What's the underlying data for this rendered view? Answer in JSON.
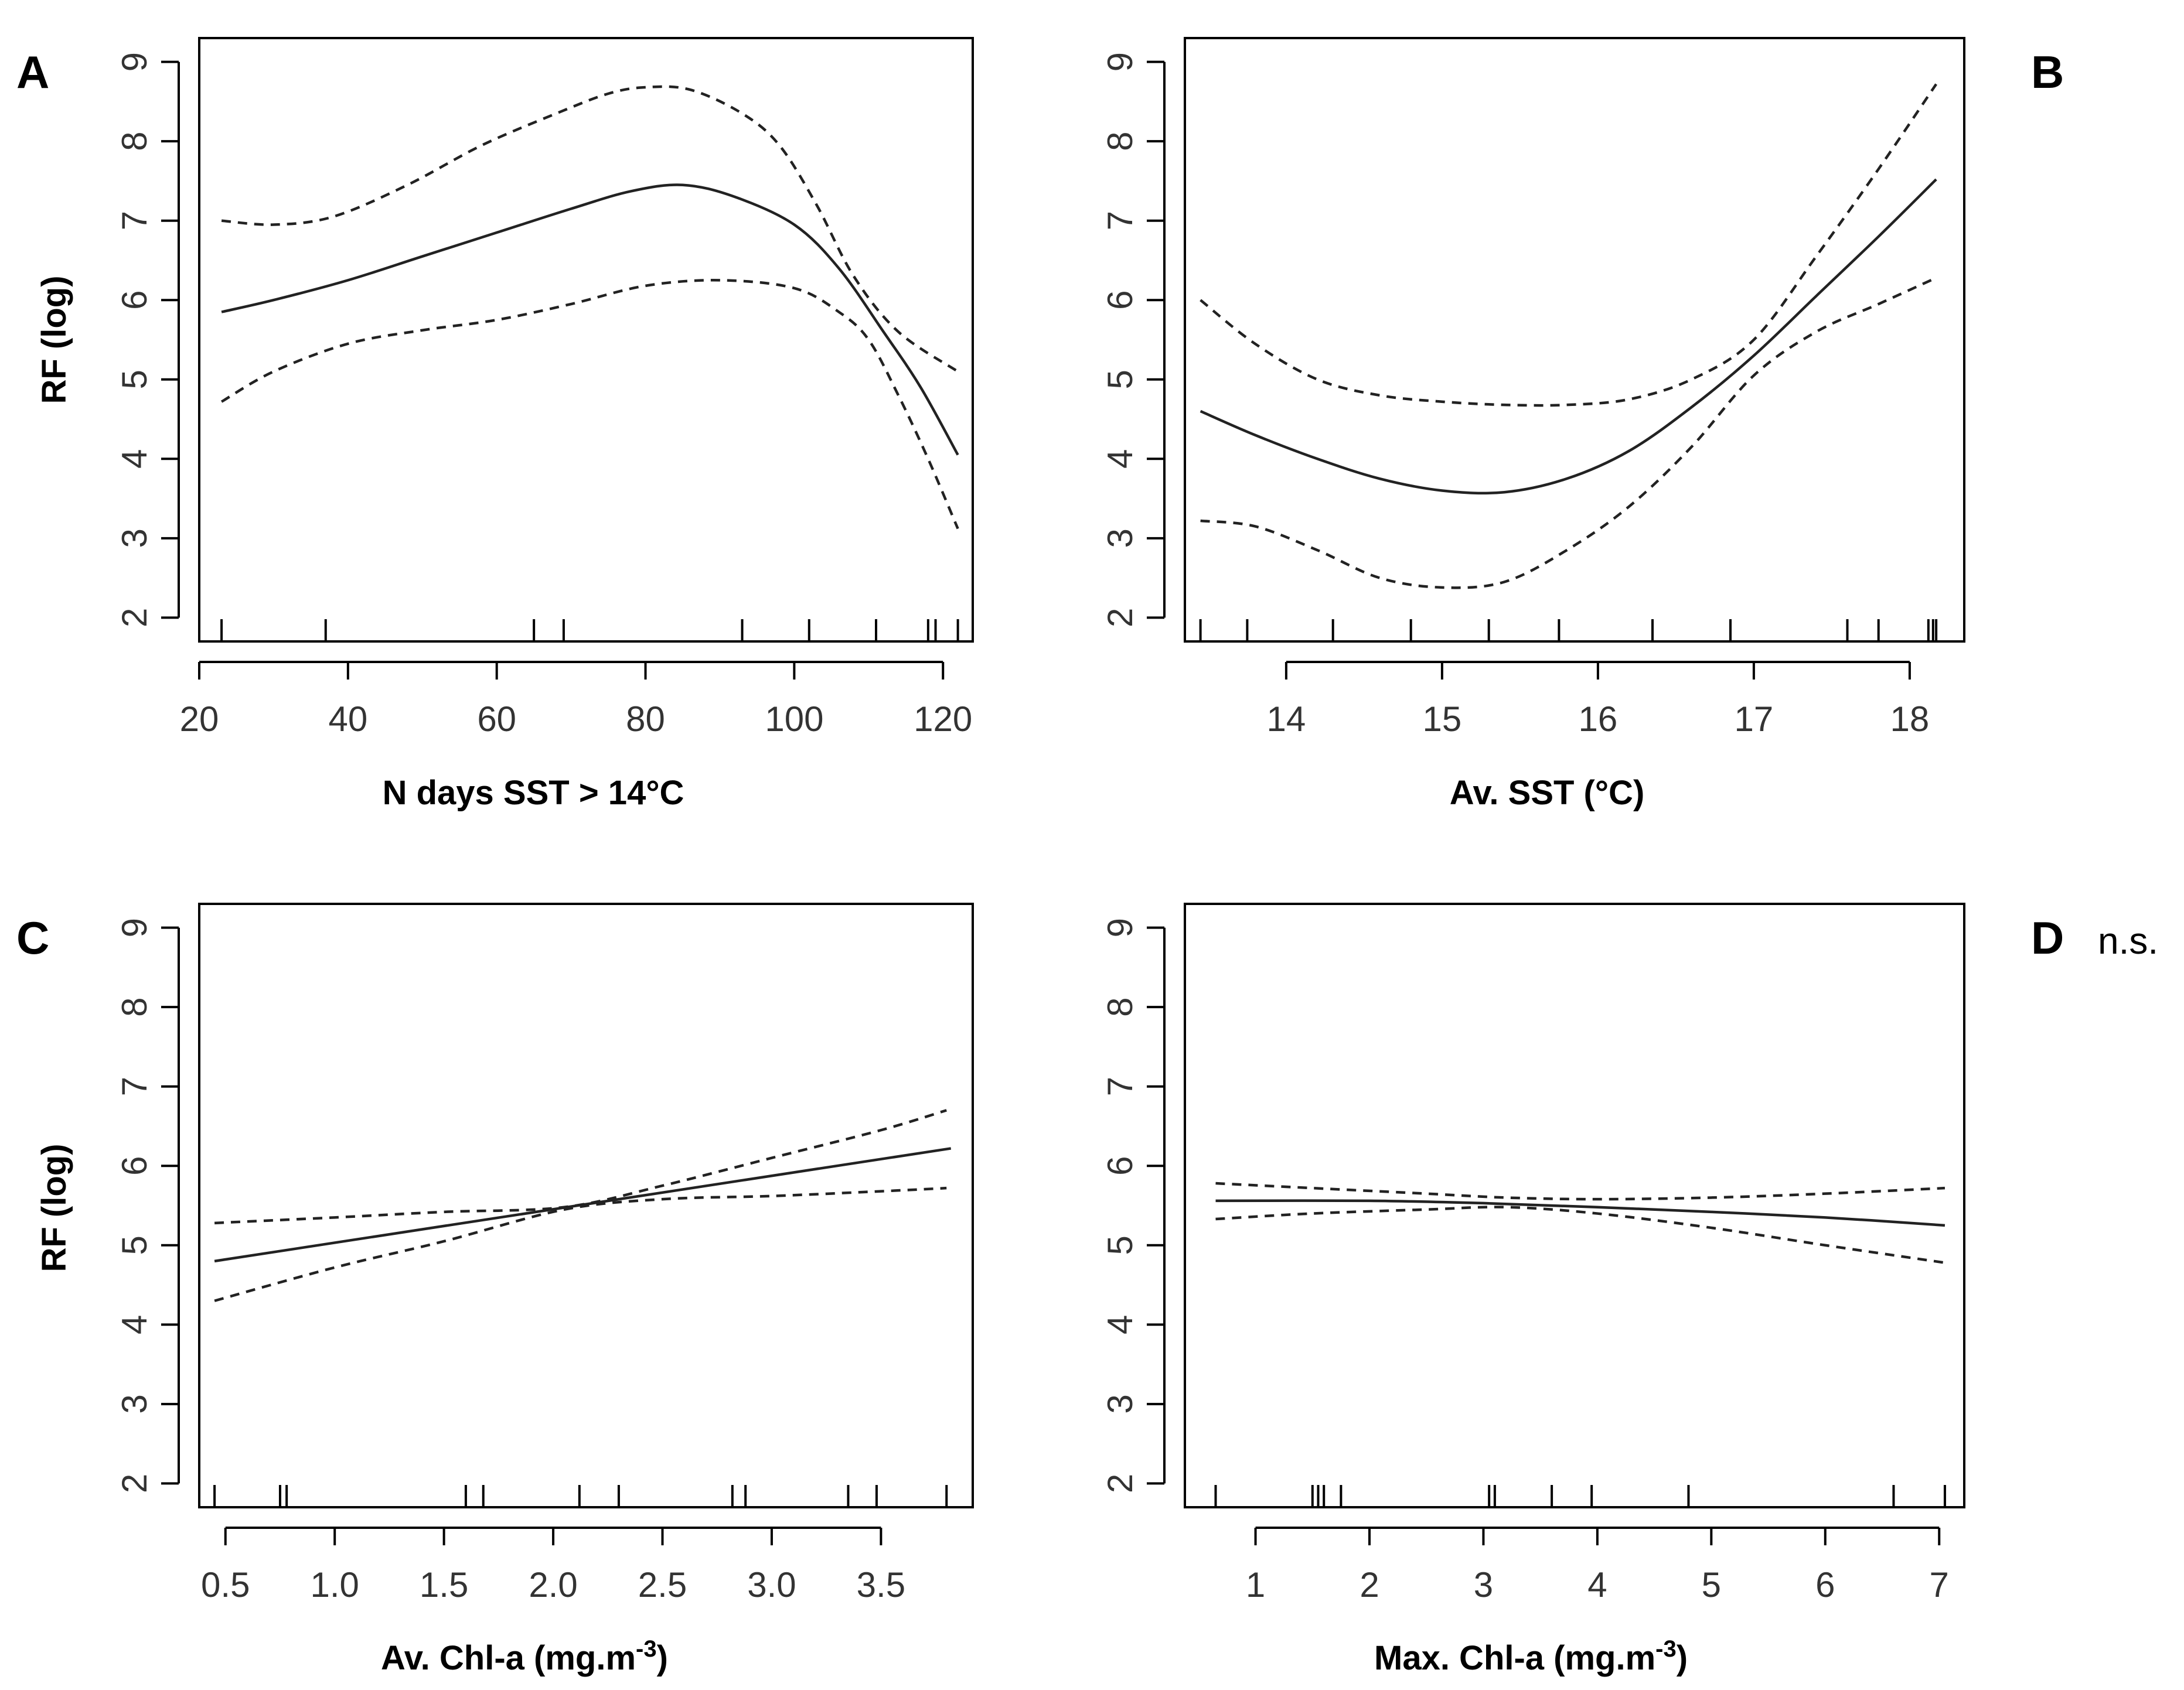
{
  "chart_data": [
    {
      "type": "line",
      "panel": "A",
      "annotation": "",
      "xlabel": "N days SST > 14°C",
      "ylabel": "RF (log)",
      "xlim": [
        20,
        124
      ],
      "ylim": [
        1.7,
        9.3
      ],
      "xticks": [
        20,
        40,
        60,
        80,
        100,
        120
      ],
      "yticks": [
        2,
        3,
        4,
        5,
        6,
        7,
        8,
        9
      ],
      "rug": [
        23,
        37,
        65,
        69,
        93,
        102,
        111,
        118,
        119,
        122
      ],
      "series": [
        {
          "name": "fit",
          "style": "solid",
          "x": [
            23,
            30,
            40,
            50,
            60,
            70,
            78,
            85,
            92,
            100,
            106,
            112,
            117,
            122
          ],
          "y": [
            5.85,
            6.0,
            6.25,
            6.55,
            6.85,
            7.15,
            7.37,
            7.45,
            7.3,
            6.95,
            6.4,
            5.6,
            4.9,
            4.05
          ]
        },
        {
          "name": "upper 95% CI",
          "style": "dashed",
          "x": [
            23,
            30,
            38,
            48,
            58,
            68,
            75,
            80,
            86,
            93,
            98,
            103,
            108,
            114,
            122
          ],
          "y": [
            7.0,
            6.95,
            7.05,
            7.45,
            7.95,
            8.35,
            8.6,
            8.68,
            8.65,
            8.35,
            7.95,
            7.2,
            6.3,
            5.6,
            5.1
          ]
        },
        {
          "name": "lower 95% CI",
          "style": "dashed",
          "x": [
            23,
            30,
            40,
            50,
            60,
            70,
            80,
            90,
            100,
            106,
            110,
            114,
            118,
            122
          ],
          "y": [
            4.72,
            5.1,
            5.45,
            5.62,
            5.75,
            5.95,
            6.18,
            6.25,
            6.15,
            5.85,
            5.5,
            4.8,
            4.0,
            3.12
          ]
        }
      ]
    },
    {
      "type": "line",
      "panel": "B",
      "annotation": "",
      "xlabel": "Av. SST (°C)",
      "ylabel": "",
      "xlim": [
        13.35,
        18.35
      ],
      "ylim": [
        1.7,
        9.3
      ],
      "xticks": [
        14,
        15,
        16,
        17,
        18
      ],
      "yticks": [
        2,
        3,
        4,
        5,
        6,
        7,
        8,
        9
      ],
      "rug": [
        13.45,
        13.75,
        14.3,
        14.8,
        15.3,
        15.75,
        16.35,
        16.85,
        17.6,
        17.8,
        18.12,
        18.15,
        18.17
      ],
      "series": [
        {
          "name": "fit",
          "style": "solid",
          "x": [
            13.45,
            13.8,
            14.2,
            14.6,
            15.0,
            15.4,
            15.8,
            16.2,
            16.6,
            17.0,
            17.4,
            17.8,
            18.17
          ],
          "y": [
            4.6,
            4.3,
            4.0,
            3.75,
            3.6,
            3.58,
            3.75,
            4.1,
            4.65,
            5.3,
            6.05,
            6.8,
            7.52
          ]
        },
        {
          "name": "upper 95% CI",
          "style": "dashed",
          "x": [
            13.45,
            13.8,
            14.2,
            14.6,
            15.0,
            15.4,
            15.8,
            16.2,
            16.6,
            17.0,
            17.4,
            17.8,
            18.17
          ],
          "y": [
            6.0,
            5.45,
            5.0,
            4.8,
            4.72,
            4.68,
            4.68,
            4.75,
            5.0,
            5.5,
            6.55,
            7.65,
            8.72
          ]
        },
        {
          "name": "lower 95% CI",
          "style": "dashed",
          "x": [
            13.45,
            13.8,
            14.2,
            14.6,
            15.0,
            15.4,
            15.8,
            16.2,
            16.6,
            17.0,
            17.4,
            17.8,
            18.17
          ],
          "y": [
            3.22,
            3.15,
            2.85,
            2.5,
            2.38,
            2.45,
            2.85,
            3.4,
            4.15,
            5.05,
            5.6,
            5.95,
            6.28
          ]
        }
      ]
    },
    {
      "type": "line",
      "panel": "C",
      "annotation": "",
      "xlabel": "Av. Chl-a (mg.m-3)",
      "ylabel": "RF (log)",
      "xlim": [
        0.38,
        3.92
      ],
      "ylim": [
        1.7,
        9.3
      ],
      "xticks": [
        0.5,
        1.0,
        1.5,
        2.0,
        2.5,
        3.0,
        3.5
      ],
      "xtick_labels": [
        "0.5",
        "1.0",
        "1.5",
        "2.0",
        "2.5",
        "3.0",
        "3.5"
      ],
      "yticks": [
        2,
        3,
        4,
        5,
        6,
        7,
        8,
        9
      ],
      "rug": [
        0.45,
        0.75,
        0.78,
        1.6,
        1.68,
        2.12,
        2.3,
        2.82,
        2.88,
        3.35,
        3.48,
        3.8
      ],
      "series": [
        {
          "name": "fit",
          "style": "solid",
          "x": [
            0.45,
            3.82
          ],
          "y": [
            4.8,
            6.22
          ]
        },
        {
          "name": "upper 95% CI",
          "style": "dashed",
          "x": [
            0.45,
            1.0,
            1.5,
            2.05,
            2.5,
            3.0,
            3.5,
            3.8
          ],
          "y": [
            5.28,
            5.35,
            5.42,
            5.48,
            5.75,
            6.1,
            6.45,
            6.7
          ]
        },
        {
          "name": "lower 95% CI",
          "style": "dashed",
          "x": [
            0.45,
            1.0,
            1.5,
            2.05,
            2.5,
            3.0,
            3.5,
            3.8
          ],
          "y": [
            4.3,
            4.72,
            5.05,
            5.45,
            5.58,
            5.62,
            5.68,
            5.72
          ]
        }
      ]
    },
    {
      "type": "line",
      "panel": "D",
      "annotation": "n.s.",
      "xlabel": "Max. Chl-a (mg.m-3)",
      "ylabel": "",
      "xlim": [
        0.38,
        7.22
      ],
      "ylim": [
        1.7,
        9.3
      ],
      "xticks": [
        1,
        2,
        3,
        4,
        5,
        6,
        7
      ],
      "yticks": [
        2,
        3,
        4,
        5,
        6,
        7,
        8,
        9
      ],
      "rug": [
        0.65,
        1.5,
        1.55,
        1.6,
        1.75,
        3.05,
        3.1,
        3.6,
        3.95,
        4.8,
        6.6,
        7.05
      ],
      "series": [
        {
          "name": "fit",
          "style": "solid",
          "x": [
            0.65,
            2.0,
            3.0,
            4.0,
            5.0,
            6.0,
            7.05
          ],
          "y": [
            5.56,
            5.56,
            5.53,
            5.48,
            5.42,
            5.35,
            5.25
          ]
        },
        {
          "name": "upper 95% CI",
          "style": "dashed",
          "x": [
            0.65,
            1.5,
            2.5,
            3.2,
            4.0,
            5.0,
            6.0,
            7.05
          ],
          "y": [
            5.78,
            5.72,
            5.65,
            5.6,
            5.58,
            5.6,
            5.65,
            5.72
          ]
        },
        {
          "name": "lower 95% CI",
          "style": "dashed",
          "x": [
            0.65,
            1.5,
            2.5,
            3.2,
            4.0,
            5.0,
            6.0,
            7.05
          ],
          "y": [
            5.33,
            5.4,
            5.45,
            5.48,
            5.4,
            5.22,
            5.0,
            4.78
          ]
        }
      ]
    }
  ]
}
